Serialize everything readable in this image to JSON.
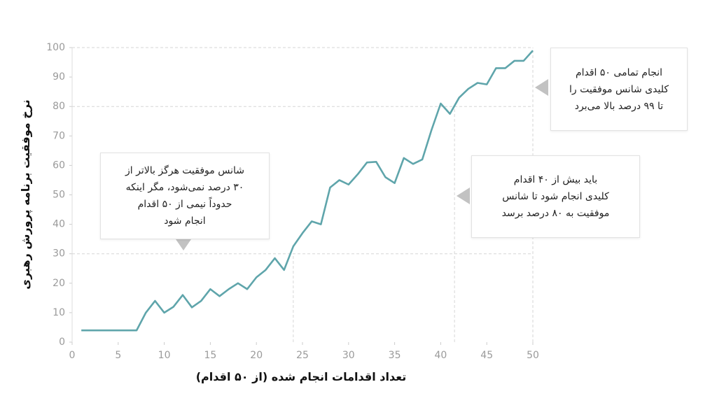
{
  "chart_data": {
    "type": "line",
    "x_label": "تعداد اقدامات انجام شده (از ۵۰ اقدام)",
    "y_label": "نرخ موفقیت برنامه پرورش رهبری",
    "x": [
      1,
      2,
      3,
      4,
      5,
      6,
      7,
      8,
      9,
      10,
      11,
      12,
      13,
      14,
      15,
      16,
      17,
      18,
      19,
      20,
      21,
      22,
      23,
      24,
      25,
      26,
      27,
      28,
      29,
      30,
      31,
      32,
      33,
      34,
      35,
      36,
      37,
      38,
      39,
      40,
      41,
      42,
      43,
      44,
      45,
      46,
      47,
      48,
      49,
      50
    ],
    "values": [
      4,
      4,
      4,
      4,
      4,
      4,
      4,
      10,
      14,
      10,
      12,
      16,
      11.8,
      14,
      18,
      15.6,
      18,
      20,
      18,
      22,
      24.5,
      28.5,
      24.5,
      32.5,
      37,
      41,
      40,
      52.5,
      55,
      53.5,
      57,
      61,
      61.2,
      56,
      54,
      62.5,
      60.5,
      62,
      72,
      81,
      77.5,
      83,
      86,
      88,
      87.5,
      93,
      93,
      95.5,
      95.5,
      99
    ],
    "color": "#5fa5ab",
    "xlim": [
      0,
      50
    ],
    "xticks": [
      0,
      5,
      10,
      15,
      20,
      25,
      30,
      35,
      40,
      45,
      50
    ],
    "ylim": [
      0,
      100
    ],
    "yticks": [
      0,
      10,
      20,
      30,
      40,
      50,
      60,
      70,
      80,
      90,
      100
    ],
    "reference_lines": [
      {
        "x": 24,
        "y": 30
      },
      {
        "x": 41.5,
        "y": 80
      },
      {
        "x": 50,
        "y": 100
      }
    ],
    "annotations": [
      {
        "lines": [
          "شانس موفقیت هرگز بالاتر از",
          "۳۰ درصد نمی‌شود، مگر اینکه",
          "حدوداً نیمی از ۵۰ اقدام",
          "انجام شود"
        ]
      },
      {
        "lines": [
          "باید بیش از ۴۰ اقدام",
          "کلیدی انجام شود تا شانس",
          "موفقیت به ۸۰ درصد برسد"
        ]
      },
      {
        "lines": [
          "انجام تمامی ۵۰ اقدام",
          "کلیدی شانس موفقیت را",
          "تا ۹۹ درصد بالا می‌برد"
        ]
      }
    ]
  }
}
